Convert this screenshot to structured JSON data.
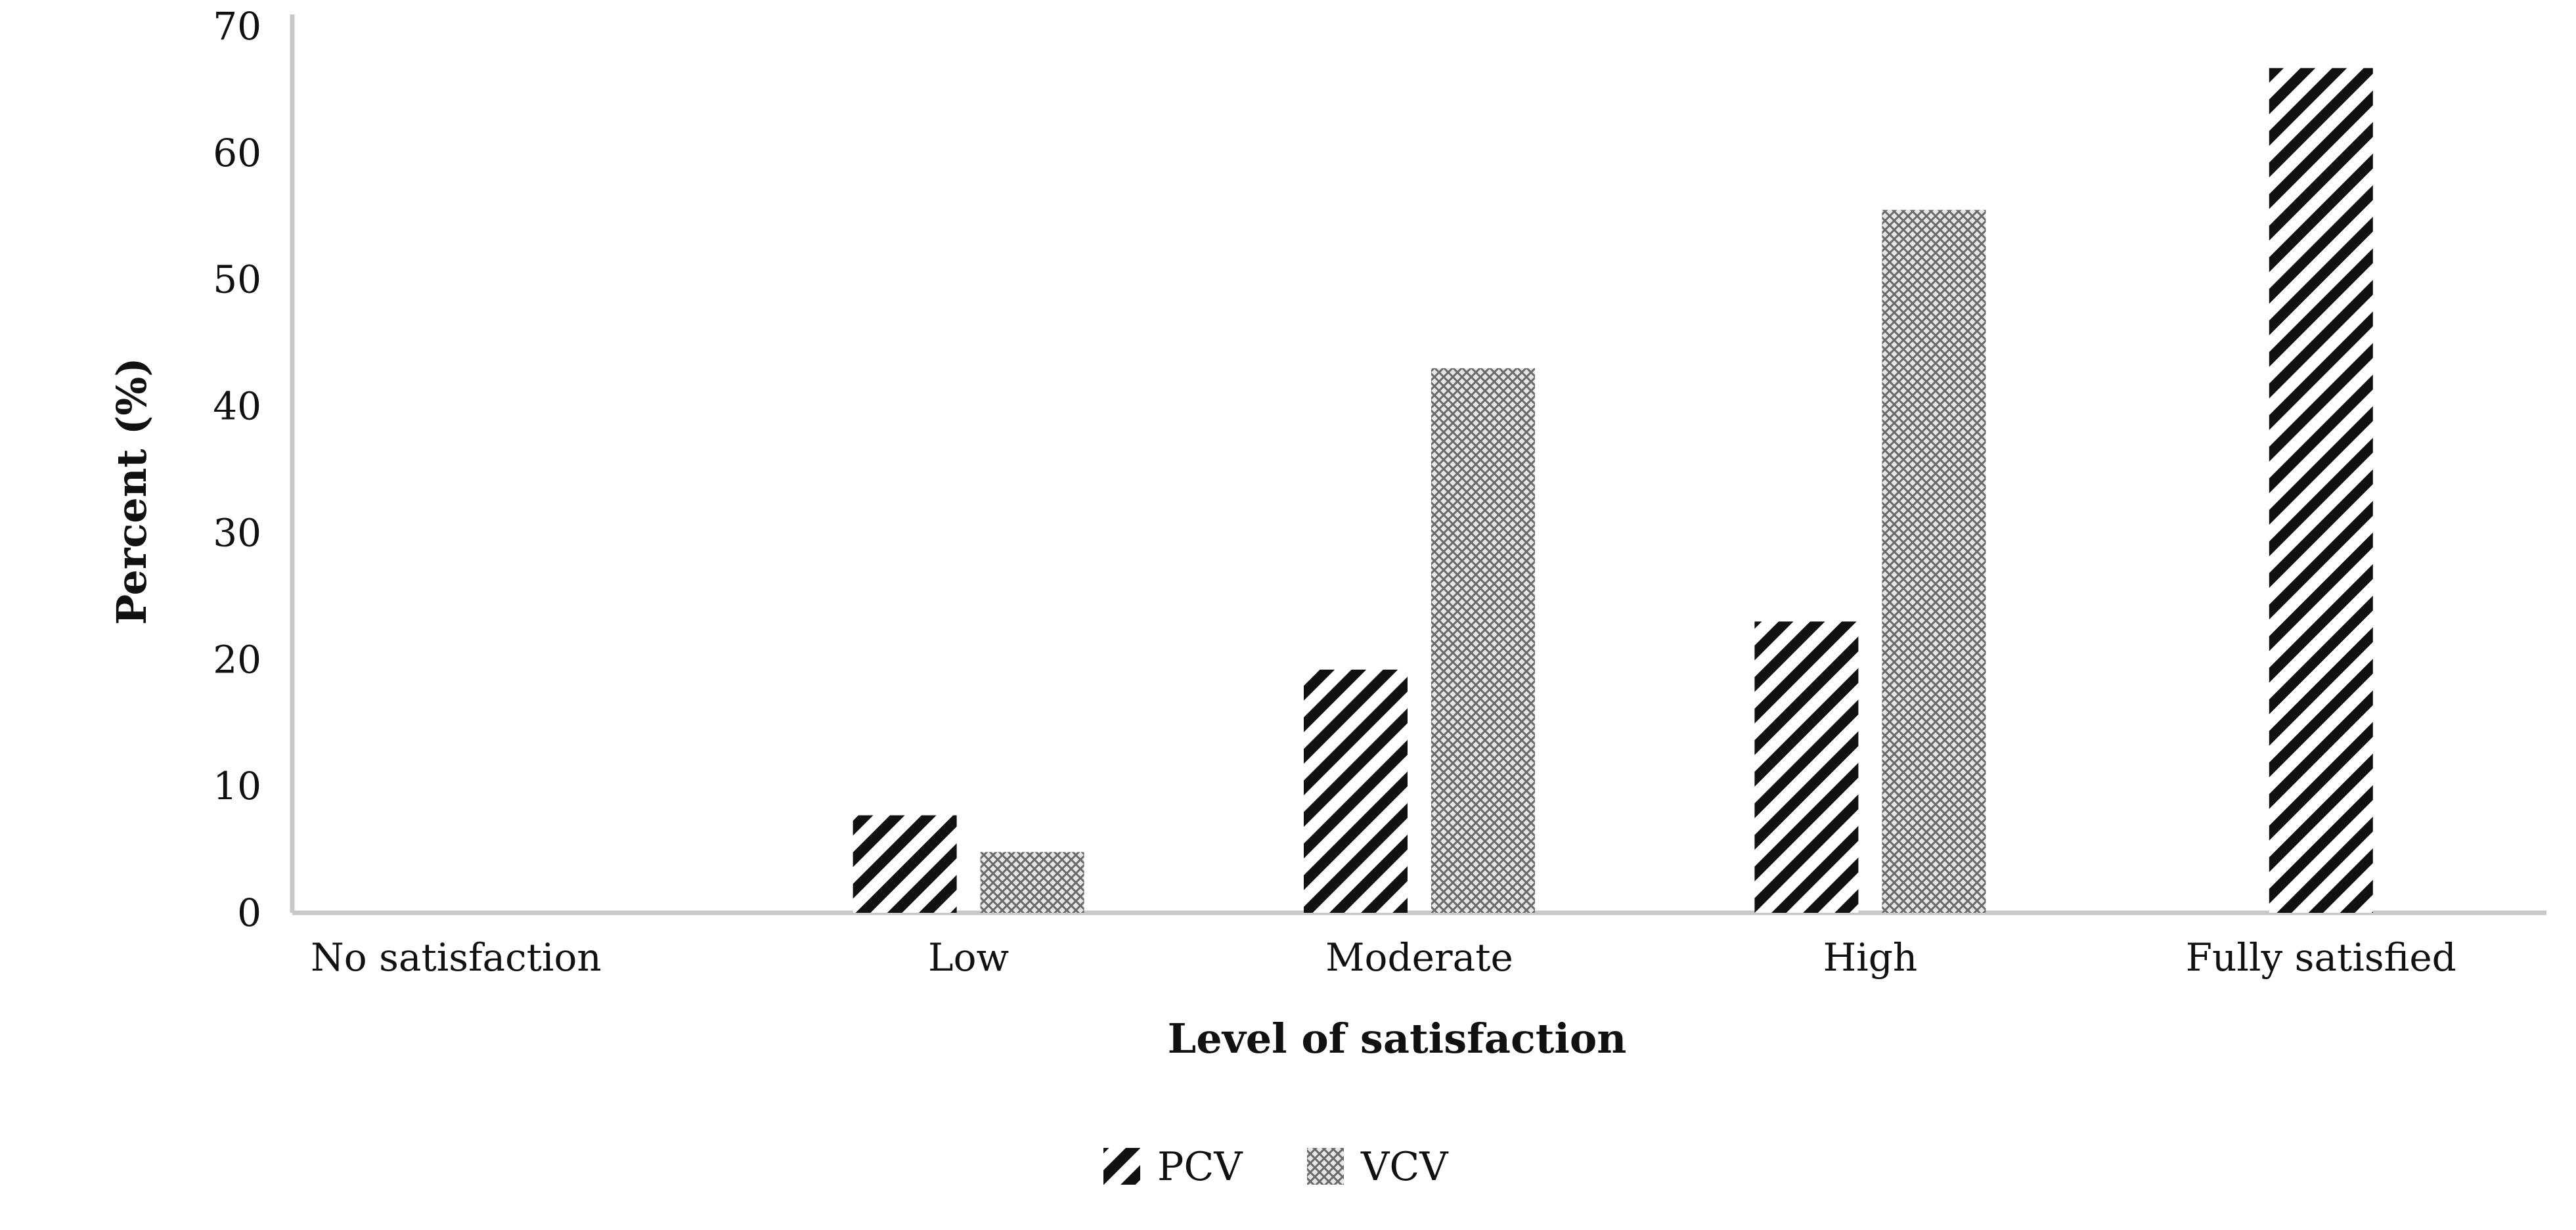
{
  "chart_data": {
    "type": "bar",
    "title": "",
    "xlabel": "Level of satisfaction",
    "ylabel": "Percent (%)",
    "ylim": [
      0,
      70
    ],
    "yticks": [
      "0",
      "10",
      "20",
      "30",
      "40",
      "50",
      "60",
      "70"
    ],
    "categories": [
      "No satisfaction",
      "Low",
      "Moderate",
      "High",
      "Fully satisfied"
    ],
    "series": [
      {
        "name": "PCV",
        "pattern": "diagonal-stripes",
        "color": "#111111",
        "values": [
          0,
          7.7,
          19.2,
          23.0,
          66.7
        ]
      },
      {
        "name": "VCV",
        "pattern": "crosshatch",
        "color": "#7a7a7a",
        "values": [
          0,
          4.8,
          43.0,
          55.5,
          0
        ]
      }
    ],
    "legend": {
      "position": "bottom",
      "entries": [
        "PCV",
        "VCV"
      ]
    },
    "grid": false,
    "axis_color": "#c8c8c8"
  }
}
